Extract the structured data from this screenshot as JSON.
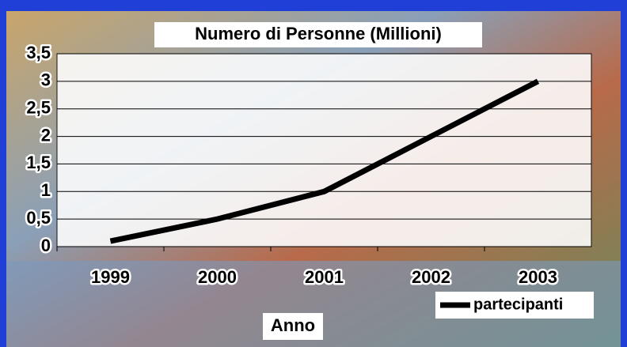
{
  "chart_data": {
    "type": "line",
    "title": "Numero di Personne (Millioni)",
    "x_label": "Anno",
    "categories": [
      "1999",
      "2000",
      "2001",
      "2002",
      "2003"
    ],
    "series": [
      {
        "name": "partecipanti",
        "color": "#000000",
        "values": [
          0.1,
          0.5,
          1.0,
          2.0,
          3.0
        ]
      }
    ],
    "ylim": [
      0,
      3.5
    ],
    "yticks": [
      0,
      {
        "value": 0.5,
        "label": "0,5"
      },
      1,
      {
        "value": 1.5,
        "label": "1,5"
      },
      2,
      {
        "value": 2.5,
        "label": "2,5"
      },
      3,
      {
        "value": 3.5,
        "label": "3,5"
      }
    ],
    "grid": true,
    "legend": "bottom-right"
  }
}
